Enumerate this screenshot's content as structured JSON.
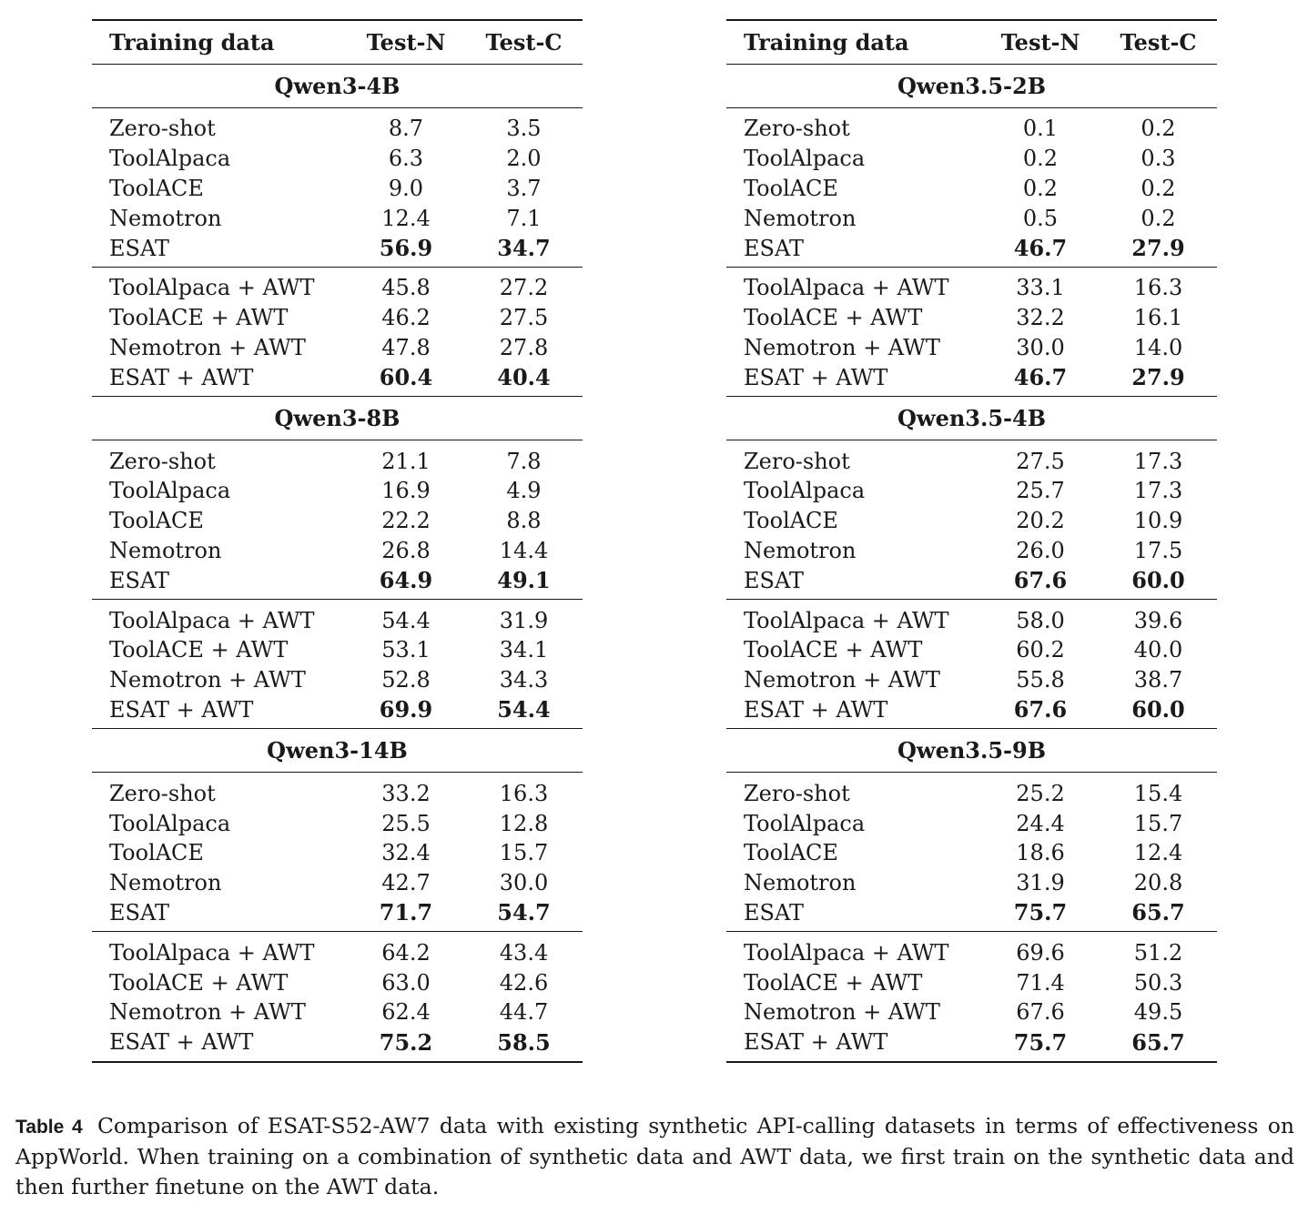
{
  "headers": {
    "training_data": "Training data",
    "test_n": "Test-N",
    "test_c": "Test-C"
  },
  "left_table": [
    {
      "model": "Qwen3-4B",
      "base": [
        {
          "name": "Zero-shot",
          "n": "8.7",
          "c": "3.5"
        },
        {
          "name": "ToolAlpaca",
          "n": "6.3",
          "c": "2.0"
        },
        {
          "name": "ToolACE",
          "n": "9.0",
          "c": "3.7"
        },
        {
          "name": "Nemotron",
          "n": "12.4",
          "c": "7.1"
        },
        {
          "name": "ESAT",
          "n": "56.9",
          "c": "34.7"
        }
      ],
      "awt": [
        {
          "name": "ToolAlpaca + AWT",
          "n": "45.8",
          "c": "27.2"
        },
        {
          "name": "ToolACE + AWT",
          "n": "46.2",
          "c": "27.5"
        },
        {
          "name": "Nemotron + AWT",
          "n": "47.8",
          "c": "27.8"
        },
        {
          "name": "ESAT + AWT",
          "n": "60.4",
          "c": "40.4"
        }
      ]
    },
    {
      "model": "Qwen3-8B",
      "base": [
        {
          "name": "Zero-shot",
          "n": "21.1",
          "c": "7.8"
        },
        {
          "name": "ToolAlpaca",
          "n": "16.9",
          "c": "4.9"
        },
        {
          "name": "ToolACE",
          "n": "22.2",
          "c": "8.8"
        },
        {
          "name": "Nemotron",
          "n": "26.8",
          "c": "14.4"
        },
        {
          "name": "ESAT",
          "n": "64.9",
          "c": "49.1"
        }
      ],
      "awt": [
        {
          "name": "ToolAlpaca + AWT",
          "n": "54.4",
          "c": "31.9"
        },
        {
          "name": "ToolACE + AWT",
          "n": "53.1",
          "c": "34.1"
        },
        {
          "name": "Nemotron + AWT",
          "n": "52.8",
          "c": "34.3"
        },
        {
          "name": "ESAT + AWT",
          "n": "69.9",
          "c": "54.4"
        }
      ]
    },
    {
      "model": "Qwen3-14B",
      "base": [
        {
          "name": "Zero-shot",
          "n": "33.2",
          "c": "16.3"
        },
        {
          "name": "ToolAlpaca",
          "n": "25.5",
          "c": "12.8"
        },
        {
          "name": "ToolACE",
          "n": "32.4",
          "c": "15.7"
        },
        {
          "name": "Nemotron",
          "n": "42.7",
          "c": "30.0"
        },
        {
          "name": "ESAT",
          "n": "71.7",
          "c": "54.7"
        }
      ],
      "awt": [
        {
          "name": "ToolAlpaca + AWT",
          "n": "64.2",
          "c": "43.4"
        },
        {
          "name": "ToolACE + AWT",
          "n": "63.0",
          "c": "42.6"
        },
        {
          "name": "Nemotron + AWT",
          "n": "62.4",
          "c": "44.7"
        },
        {
          "name": "ESAT + AWT",
          "n": "75.2",
          "c": "58.5"
        }
      ]
    }
  ],
  "right_table": [
    {
      "model": "Qwen3.5-2B",
      "base": [
        {
          "name": "Zero-shot",
          "n": "0.1",
          "c": "0.2"
        },
        {
          "name": "ToolAlpaca",
          "n": "0.2",
          "c": "0.3"
        },
        {
          "name": "ToolACE",
          "n": "0.2",
          "c": "0.2"
        },
        {
          "name": "Nemotron",
          "n": "0.5",
          "c": "0.2"
        },
        {
          "name": "ESAT",
          "n": "46.7",
          "c": "27.9"
        }
      ],
      "awt": [
        {
          "name": "ToolAlpaca + AWT",
          "n": "33.1",
          "c": "16.3"
        },
        {
          "name": "ToolACE + AWT",
          "n": "32.2",
          "c": "16.1"
        },
        {
          "name": "Nemotron + AWT",
          "n": "30.0",
          "c": "14.0"
        },
        {
          "name": "ESAT + AWT",
          "n": "46.7",
          "c": "27.9"
        }
      ]
    },
    {
      "model": "Qwen3.5-4B",
      "base": [
        {
          "name": "Zero-shot",
          "n": "27.5",
          "c": "17.3"
        },
        {
          "name": "ToolAlpaca",
          "n": "25.7",
          "c": "17.3"
        },
        {
          "name": "ToolACE",
          "n": "20.2",
          "c": "10.9"
        },
        {
          "name": "Nemotron",
          "n": "26.0",
          "c": "17.5"
        },
        {
          "name": "ESAT",
          "n": "67.6",
          "c": "60.0"
        }
      ],
      "awt": [
        {
          "name": "ToolAlpaca + AWT",
          "n": "58.0",
          "c": "39.6"
        },
        {
          "name": "ToolACE + AWT",
          "n": "60.2",
          "c": "40.0"
        },
        {
          "name": "Nemotron + AWT",
          "n": "55.8",
          "c": "38.7"
        },
        {
          "name": "ESAT + AWT",
          "n": "67.6",
          "c": "60.0"
        }
      ]
    },
    {
      "model": "Qwen3.5-9B",
      "base": [
        {
          "name": "Zero-shot",
          "n": "25.2",
          "c": "15.4"
        },
        {
          "name": "ToolAlpaca",
          "n": "24.4",
          "c": "15.7"
        },
        {
          "name": "ToolACE",
          "n": "18.6",
          "c": "12.4"
        },
        {
          "name": "Nemotron",
          "n": "31.9",
          "c": "20.8"
        },
        {
          "name": "ESAT",
          "n": "75.7",
          "c": "65.7"
        }
      ],
      "awt": [
        {
          "name": "ToolAlpaca + AWT",
          "n": "69.6",
          "c": "51.2"
        },
        {
          "name": "ToolACE + AWT",
          "n": "71.4",
          "c": "50.3"
        },
        {
          "name": "Nemotron + AWT",
          "n": "67.6",
          "c": "49.5"
        },
        {
          "name": "ESAT + AWT",
          "n": "75.7",
          "c": "65.7"
        }
      ]
    }
  ],
  "caption": {
    "label": "Table 4",
    "text": "Comparison of ESAT-S52-AW7 data with existing synthetic API-calling datasets in terms of effectiveness on AppWorld. When training on a combination of synthetic data and AWT data, we first train on the synthetic data and then further finetune on the AWT data."
  }
}
